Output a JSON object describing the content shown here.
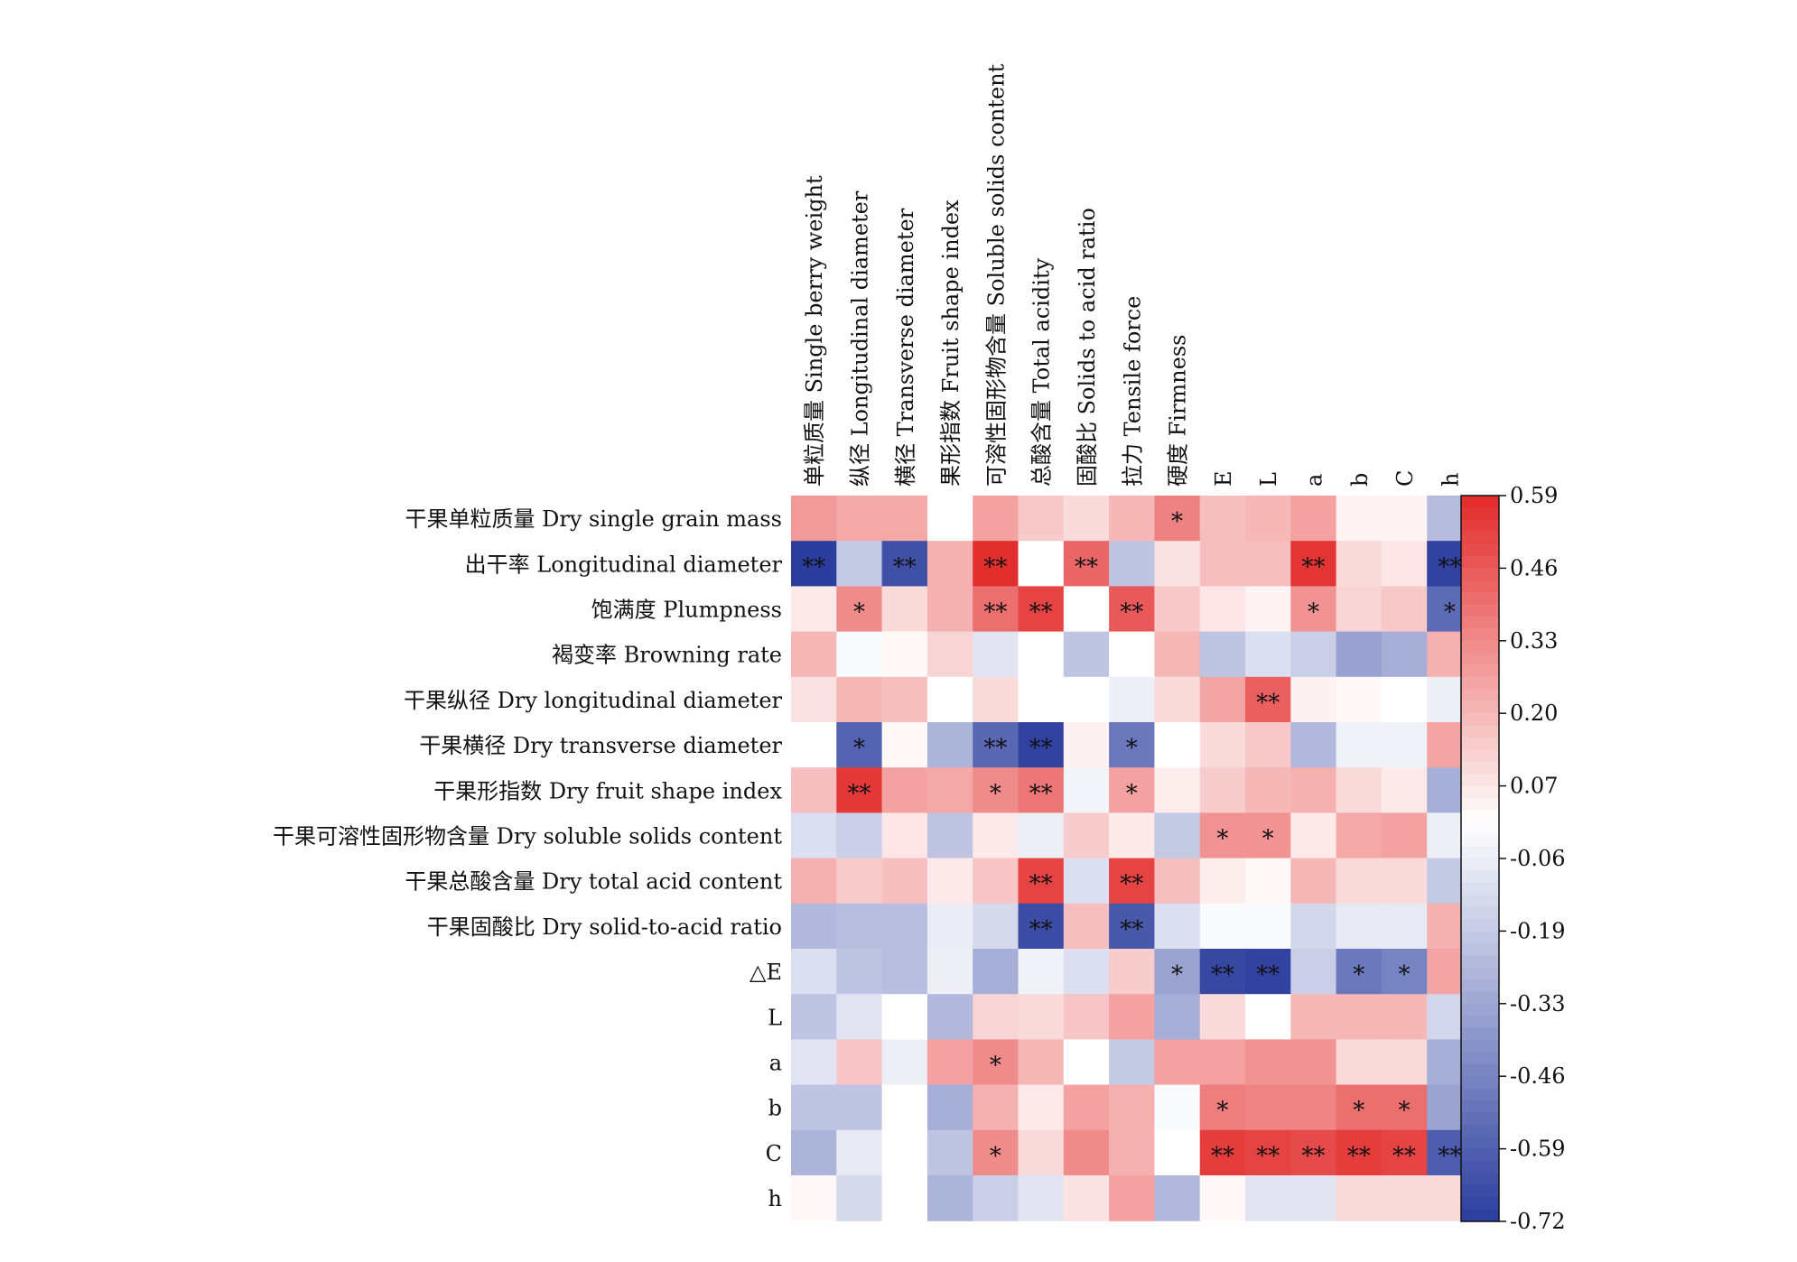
{
  "chart_data": {
    "type": "heatmap",
    "columns": [
      "单粒质量 Single berry weight",
      "纵径 Longitudinal diameter",
      "横径 Transverse diameter",
      "果形指数 Fruit shape index",
      "可溶性固形物含量 Soluble solids content",
      "总酸含量 Total acidity",
      "固酸比 Solids to acid ratio",
      "拉力 Tensile force",
      "硬度 Firmness",
      "E",
      "L",
      "a",
      "b",
      "C",
      "h"
    ],
    "rows": [
      "干果单粒质量 Dry single grain mass",
      "出干率 Longitudinal diameter",
      "饱满度 Plumpness",
      "褐变率 Browning rate",
      "干果纵径 Dry longitudinal diameter",
      "干果横径 Dry transverse diameter",
      "干果形指数 Dry fruit shape index",
      "干果可溶性固形物含量 Dry soluble solids content",
      "干果总酸含量 Dry total acid content",
      "干果固酸比 Dry solid-to-acid ratio",
      "△E",
      "L",
      "a",
      "b",
      "C",
      "h"
    ],
    "values": [
      [
        0.28,
        0.24,
        0.24,
        0.0,
        0.26,
        0.15,
        0.1,
        0.2,
        0.35,
        0.18,
        0.2,
        0.26,
        0.03,
        0.03,
        -0.25
      ],
      [
        -0.72,
        -0.2,
        -0.65,
        0.22,
        0.58,
        0.0,
        0.42,
        -0.22,
        0.08,
        0.18,
        0.18,
        0.56,
        0.1,
        0.07,
        -0.7
      ],
      [
        0.06,
        0.32,
        0.1,
        0.22,
        0.4,
        0.52,
        0.0,
        0.46,
        0.15,
        0.07,
        0.03,
        0.3,
        0.12,
        0.15,
        -0.55
      ],
      [
        0.2,
        -0.02,
        0.02,
        0.12,
        -0.1,
        0.0,
        -0.22,
        0.0,
        0.2,
        -0.22,
        -0.12,
        -0.18,
        -0.35,
        -0.3,
        0.22
      ],
      [
        0.08,
        0.2,
        0.18,
        0.0,
        0.1,
        0.0,
        0.0,
        -0.06,
        0.1,
        0.25,
        0.44,
        0.04,
        0.02,
        0.0,
        -0.06
      ],
      [
        0.0,
        -0.58,
        0.02,
        -0.28,
        -0.56,
        -0.7,
        0.04,
        -0.5,
        0.0,
        0.1,
        0.15,
        -0.26,
        -0.05,
        -0.05,
        0.25
      ],
      [
        0.18,
        0.55,
        0.26,
        0.24,
        0.32,
        0.38,
        -0.04,
        0.26,
        0.05,
        0.14,
        0.2,
        0.22,
        0.1,
        0.06,
        -0.3
      ],
      [
        -0.12,
        -0.18,
        0.07,
        -0.22,
        0.06,
        -0.06,
        0.14,
        0.06,
        -0.2,
        0.3,
        0.3,
        0.06,
        0.24,
        0.26,
        -0.06
      ],
      [
        0.22,
        0.14,
        0.18,
        0.06,
        0.16,
        0.52,
        -0.12,
        0.52,
        0.18,
        0.05,
        0.02,
        0.2,
        0.1,
        0.1,
        -0.2
      ],
      [
        -0.26,
        -0.24,
        -0.24,
        -0.07,
        -0.14,
        -0.66,
        0.18,
        -0.62,
        -0.12,
        -0.02,
        -0.02,
        -0.15,
        -0.08,
        -0.08,
        0.22
      ],
      [
        -0.12,
        -0.22,
        -0.24,
        -0.06,
        -0.3,
        -0.05,
        -0.12,
        0.14,
        -0.34,
        -0.68,
        -0.7,
        -0.18,
        -0.5,
        -0.46,
        0.25
      ],
      [
        -0.22,
        -0.1,
        0.0,
        -0.26,
        0.12,
        0.1,
        0.16,
        0.26,
        -0.3,
        0.1,
        0.0,
        0.2,
        0.2,
        0.2,
        -0.15
      ],
      [
        -0.1,
        0.16,
        -0.06,
        0.26,
        0.32,
        0.2,
        0.0,
        -0.2,
        0.26,
        0.26,
        0.3,
        0.3,
        0.1,
        0.1,
        -0.3
      ],
      [
        -0.22,
        -0.22,
        0.0,
        -0.3,
        0.22,
        0.06,
        0.26,
        0.22,
        -0.02,
        0.36,
        0.34,
        0.34,
        0.4,
        0.4,
        -0.34
      ],
      [
        -0.28,
        -0.08,
        0.0,
        -0.22,
        0.32,
        0.1,
        0.32,
        0.22,
        0.0,
        0.54,
        0.52,
        0.5,
        0.54,
        0.52,
        -0.6
      ],
      [
        0.02,
        -0.14,
        0.0,
        -0.28,
        -0.18,
        -0.1,
        0.08,
        0.26,
        -0.26,
        0.02,
        -0.1,
        -0.1,
        0.1,
        0.1,
        0.1
      ]
    ],
    "significance": [
      [
        "",
        "",
        "",
        "",
        "",
        "",
        "",
        "",
        "*",
        "",
        "",
        "",
        "",
        "",
        ""
      ],
      [
        "**",
        "",
        "**",
        "",
        "**",
        "",
        "**",
        "",
        "",
        "",
        "",
        "**",
        "",
        "",
        "**"
      ],
      [
        "",
        "*",
        "",
        "",
        "**",
        "**",
        "",
        "**",
        "",
        "",
        "",
        "*",
        "",
        "",
        "*"
      ],
      [
        "",
        "",
        "",
        "",
        "",
        "",
        "",
        "",
        "",
        "",
        "",
        "",
        "",
        "",
        ""
      ],
      [
        "",
        "",
        "",
        "",
        "",
        "",
        "",
        "",
        "",
        "",
        "**",
        "",
        "",
        "",
        ""
      ],
      [
        "",
        "*",
        "",
        "",
        "**",
        "**",
        "",
        "*",
        "",
        "",
        "",
        "",
        "",
        "",
        ""
      ],
      [
        "",
        "**",
        "",
        "",
        "*",
        "**",
        "",
        "*",
        "",
        "",
        "",
        "",
        "",
        "",
        ""
      ],
      [
        "",
        "",
        "",
        "",
        "",
        "",
        "",
        "",
        "",
        "*",
        "*",
        "",
        "",
        "",
        ""
      ],
      [
        "",
        "",
        "",
        "",
        "",
        "**",
        "",
        "**",
        "",
        "",
        "",
        "",
        "",
        "",
        ""
      ],
      [
        "",
        "",
        "",
        "",
        "",
        "**",
        "",
        "**",
        "",
        "",
        "",
        "",
        "",
        "",
        ""
      ],
      [
        "",
        "",
        "",
        "",
        "",
        "",
        "",
        "",
        "*",
        "**",
        "**",
        "",
        "*",
        "*",
        ""
      ],
      [
        "",
        "",
        "",
        "",
        "",
        "",
        "",
        "",
        "",
        "",
        "",
        "",
        "",
        "",
        ""
      ],
      [
        "",
        "",
        "",
        "",
        "*",
        "",
        "",
        "",
        "",
        "",
        "",
        "",
        "",
        "",
        ""
      ],
      [
        "",
        "",
        "",
        "",
        "",
        "",
        "",
        "",
        "",
        "*",
        "",
        "",
        "*",
        "*",
        ""
      ],
      [
        "",
        "",
        "",
        "",
        "*",
        "",
        "",
        "",
        "",
        "**",
        "**",
        "**",
        "**",
        "**",
        "**"
      ],
      [
        "",
        "",
        "",
        "",
        "",
        "",
        "",
        "",
        "",
        "",
        "",
        "",
        "",
        "",
        ""
      ]
    ],
    "colorbar": {
      "ticks": [
        "0.59",
        "0.46",
        "0.33",
        "0.20",
        "0.07",
        "-0.06",
        "-0.19",
        "-0.33",
        "-0.46",
        "-0.59",
        "-0.72"
      ],
      "min": -0.72,
      "max": 0.59,
      "colors": {
        "high": "#e32a2a",
        "mid": "#ffffff",
        "low": "#2b3d9e"
      }
    }
  }
}
